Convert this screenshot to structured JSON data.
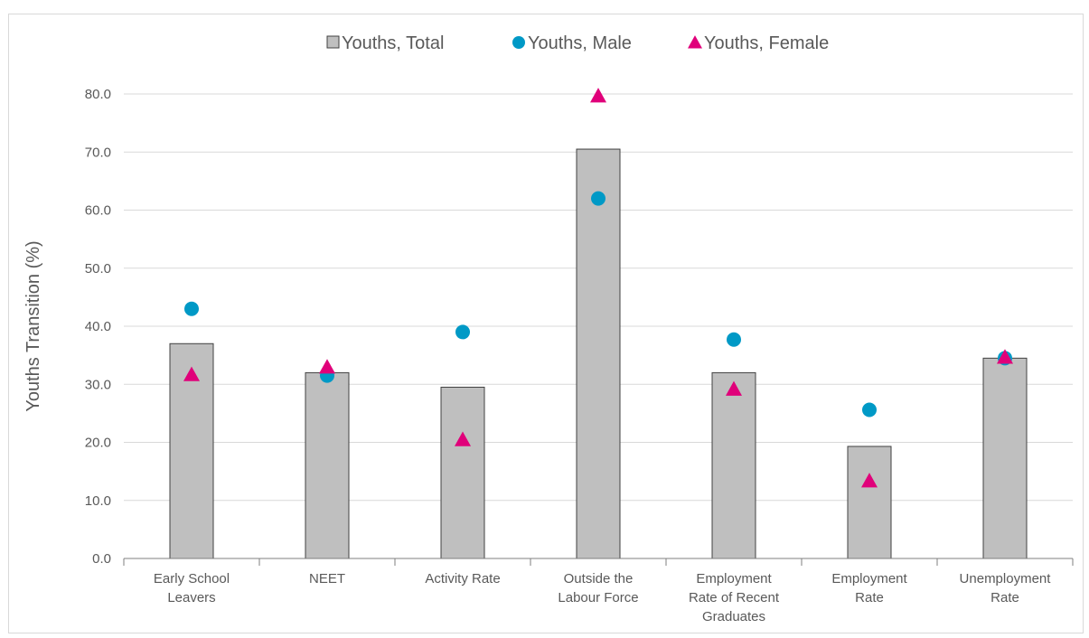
{
  "chart_data": {
    "type": "bar",
    "title": "",
    "xlabel": "",
    "ylabel": "Youths Transition (%)",
    "ylim": [
      0,
      80
    ],
    "yticks": [
      "0.0",
      "10.0",
      "20.0",
      "30.0",
      "40.0",
      "50.0",
      "60.0",
      "70.0",
      "80.0"
    ],
    "grid": true,
    "legend_position": "top",
    "categories": [
      [
        "Early School",
        "Leavers"
      ],
      [
        "NEET"
      ],
      [
        "Activity Rate"
      ],
      [
        "Outside the",
        "Labour Force"
      ],
      [
        "Employment",
        "Rate of Recent",
        "Graduates"
      ],
      [
        "Employment",
        "Rate"
      ],
      [
        "Unemployment",
        "Rate"
      ]
    ],
    "series": [
      {
        "name": "Youths, Total",
        "marker": "bar",
        "color": "#bfbfbf",
        "values": [
          37.0,
          32.0,
          29.5,
          70.5,
          32.0,
          19.3,
          34.5
        ]
      },
      {
        "name": "Youths, Male",
        "marker": "circle",
        "color": "#0099c6",
        "values": [
          43.0,
          31.5,
          39.0,
          62.0,
          37.7,
          25.6,
          34.5
        ]
      },
      {
        "name": "Youths, Female",
        "marker": "triangle",
        "color": "#e0007a",
        "values": [
          31.5,
          32.8,
          20.3,
          79.5,
          29.0,
          13.2,
          34.5
        ]
      }
    ]
  }
}
